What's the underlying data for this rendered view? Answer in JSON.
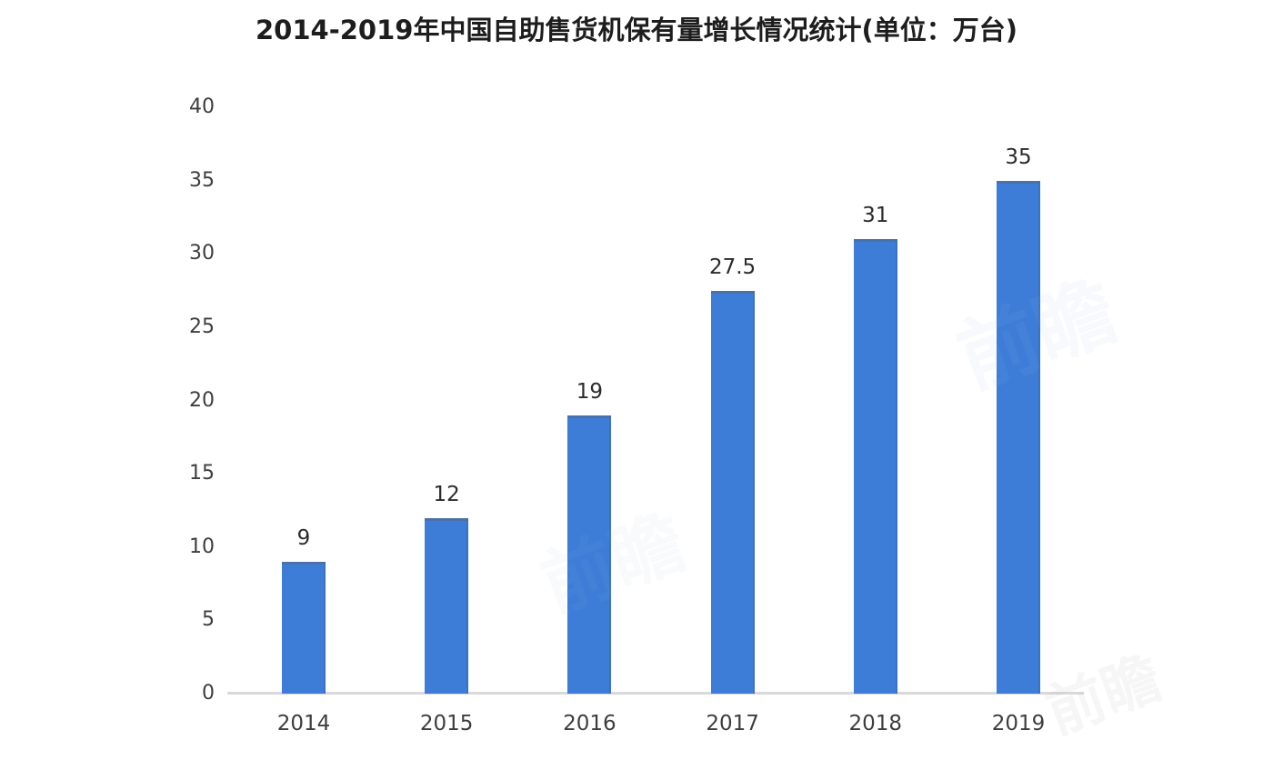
{
  "title": "2014-2019年中国自助售货机保有量增长情况统计(单位：万台)",
  "watermark_text": "前瞻",
  "colors": {
    "bar": "#3d7dd8",
    "baseline": "#d9d9d9",
    "title_text": "#1d1d1d",
    "axis_text": "#3e3e3e",
    "value_text": "#2b2b2b",
    "background": "#ffffff"
  },
  "chart_data": {
    "type": "bar",
    "title": "2014-2019年中国自助售货机保有量增长情况统计(单位：万台)",
    "categories": [
      "2014",
      "2015",
      "2016",
      "2017",
      "2018",
      "2019"
    ],
    "values": [
      9,
      12,
      19,
      27.5,
      31,
      35
    ],
    "value_labels": [
      "9",
      "12",
      "19",
      "27.5",
      "31",
      "35"
    ],
    "unit": "万台",
    "xlabel": "",
    "ylabel": "",
    "ylim": [
      0,
      40
    ],
    "yticks": [
      0,
      5,
      10,
      15,
      20,
      25,
      30,
      35,
      40
    ],
    "grid": false,
    "legend": false,
    "bar_color": "#3d7dd8"
  }
}
